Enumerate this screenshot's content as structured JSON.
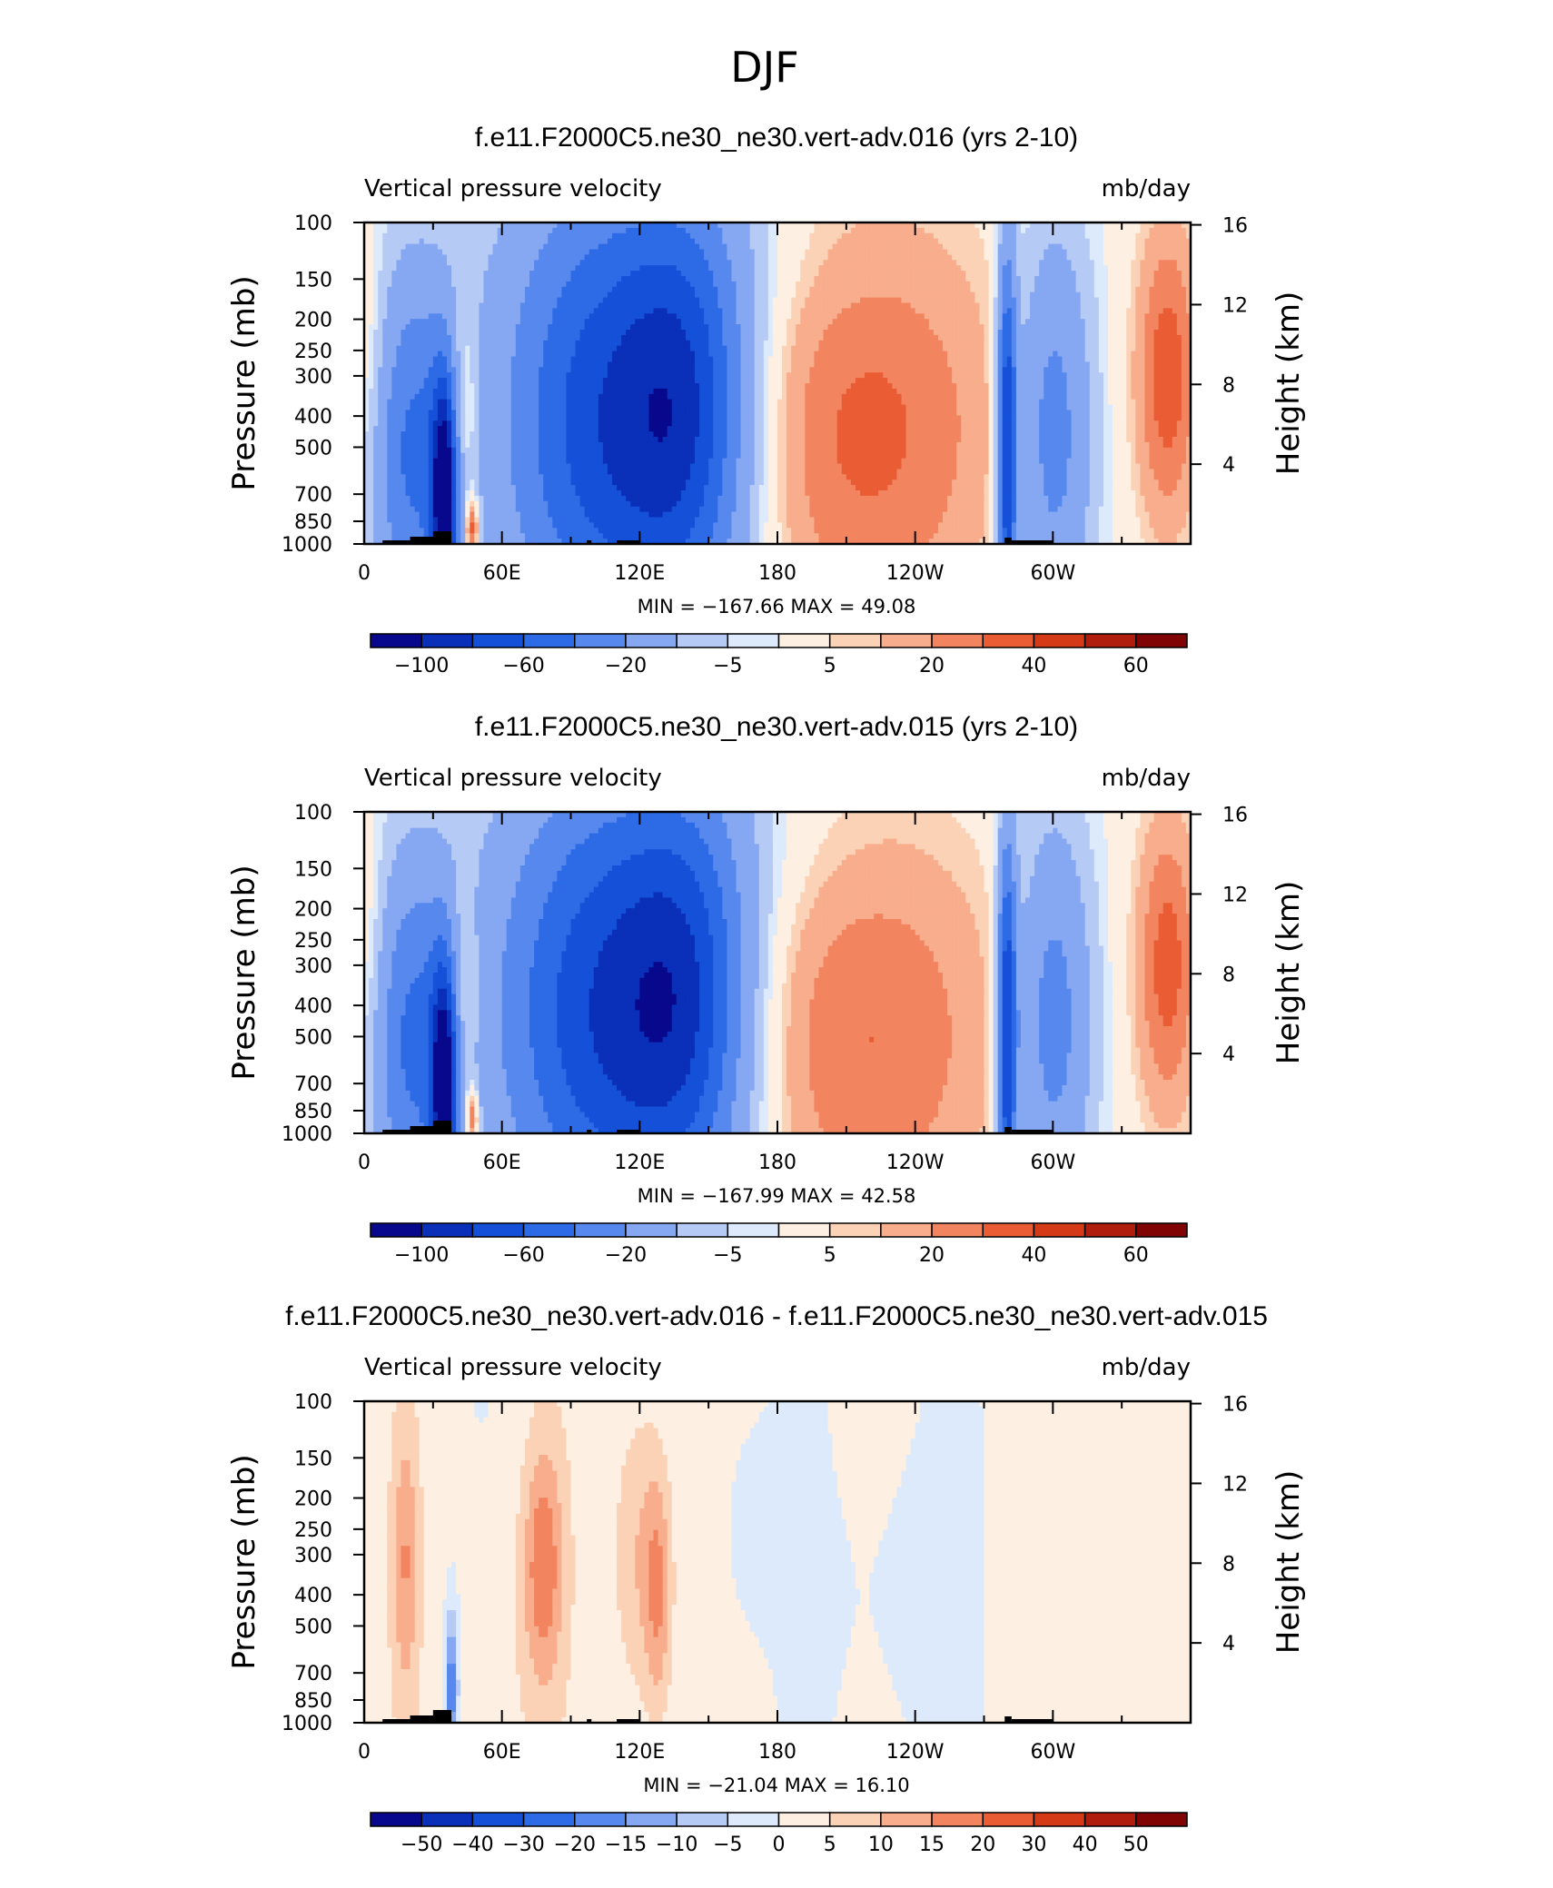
{
  "figure": {
    "title": "DJF"
  },
  "colors": {
    "diverging": [
      "#08088c",
      "#0a2fb8",
      "#1450d8",
      "#2d6ae6",
      "#5788ee",
      "#86a8f2",
      "#b6caf6",
      "#ddeafb",
      "#fdf0e3",
      "#fbd2b6",
      "#f8ad8c",
      "#f28560",
      "#ea5c34",
      "#d43a16",
      "#b11d0c",
      "#810404"
    ]
  },
  "chart_data": [
    {
      "type": "heatmap",
      "title": "f.e11.F2000C5.ne30_ne30.vert-adv.016 (yrs 2-10)",
      "left_subtitle": "Vertical pressure velocity",
      "right_subtitle": "mb/day",
      "ylabel": "Pressure (mb)",
      "y2label": "Height (km)",
      "y_ticks": [
        "100",
        "150",
        "200",
        "250",
        "300",
        "400",
        "500",
        "700",
        "850",
        "1000"
      ],
      "y_tick_values": [
        100,
        150,
        200,
        250,
        300,
        400,
        500,
        700,
        850,
        1000
      ],
      "y2_ticks": [
        "16",
        "12",
        "8",
        "4"
      ],
      "y2_tick_values": [
        16,
        12,
        8,
        4
      ],
      "x_ticks": [
        "0",
        "60E",
        "120E",
        "180",
        "120W",
        "60W"
      ],
      "x_tick_values": [
        0,
        60,
        120,
        180,
        240,
        300
      ],
      "xlim": [
        0,
        360
      ],
      "ylim": [
        1000,
        100
      ],
      "y_scale": "log",
      "stats": "MIN = −167.66   MAX =   49.08",
      "colorbar_labels": [
        "−100",
        "−60",
        "−20",
        "−5",
        "5",
        "20",
        "40",
        "60"
      ],
      "features": [
        {
          "lon": 22,
          "p": 520,
          "value": -60,
          "wlon": 14,
          "wp": 0.9
        },
        {
          "lon": 35,
          "p": 720,
          "value": -120,
          "wlon": 4,
          "wp": 0.6
        },
        {
          "lon": 43,
          "p": 420,
          "value": 30,
          "wlon": 5,
          "wp": 0.6
        },
        {
          "lon": 47,
          "p": 900,
          "value": 50,
          "wlon": 2,
          "wp": 0.15
        },
        {
          "lon": 2,
          "p": 300,
          "value": 15,
          "wlon": 6,
          "wp": 0.7
        },
        {
          "lon": 100,
          "p": 400,
          "value": -60,
          "wlon": 28,
          "wp": 1.1
        },
        {
          "lon": 140,
          "p": 380,
          "value": -70,
          "wlon": 20,
          "wp": 1.0
        },
        {
          "lon": 120,
          "p": 600,
          "value": -30,
          "wlon": 40,
          "wp": 1.3
        },
        {
          "lon": 215,
          "p": 420,
          "value": 38,
          "wlon": 45,
          "wp": 1.2
        },
        {
          "lon": 280,
          "p": 500,
          "value": -100,
          "wlon": 3,
          "wp": 1.0
        },
        {
          "lon": 300,
          "p": 450,
          "value": -50,
          "wlon": 12,
          "wp": 1.0
        },
        {
          "lon": 350,
          "p": 300,
          "value": 40,
          "wlon": 10,
          "wp": 0.8
        },
        {
          "lon": 150,
          "p": 130,
          "value": -10,
          "wlon": 60,
          "wp": 0.6
        }
      ]
    },
    {
      "type": "heatmap",
      "title": "f.e11.F2000C5.ne30_ne30.vert-adv.015 (yrs 2-10)",
      "left_subtitle": "Vertical pressure velocity",
      "right_subtitle": "mb/day",
      "ylabel": "Pressure (mb)",
      "y2label": "Height (km)",
      "y_ticks": [
        "100",
        "150",
        "200",
        "250",
        "300",
        "400",
        "500",
        "700",
        "850",
        "1000"
      ],
      "y_tick_values": [
        100,
        150,
        200,
        250,
        300,
        400,
        500,
        700,
        850,
        1000
      ],
      "y2_ticks": [
        "16",
        "12",
        "8",
        "4"
      ],
      "y2_tick_values": [
        16,
        12,
        8,
        4
      ],
      "x_ticks": [
        "0",
        "60E",
        "120E",
        "180",
        "120W",
        "60W"
      ],
      "x_tick_values": [
        0,
        60,
        120,
        180,
        240,
        300
      ],
      "xlim": [
        0,
        360
      ],
      "ylim": [
        1000,
        100
      ],
      "y_scale": "log",
      "stats": "MIN = −167.99   MAX =   42.58",
      "colorbar_labels": [
        "−100",
        "−60",
        "−20",
        "−5",
        "5",
        "20",
        "40",
        "60"
      ],
      "features": [
        {
          "lon": 22,
          "p": 520,
          "value": -60,
          "wlon": 14,
          "wp": 0.9
        },
        {
          "lon": 35,
          "p": 720,
          "value": -120,
          "wlon": 4,
          "wp": 0.6
        },
        {
          "lon": 43,
          "p": 420,
          "value": 30,
          "wlon": 5,
          "wp": 0.6
        },
        {
          "lon": 47,
          "p": 900,
          "value": 45,
          "wlon": 2,
          "wp": 0.15
        },
        {
          "lon": 2,
          "p": 300,
          "value": 15,
          "wlon": 6,
          "wp": 0.7
        },
        {
          "lon": 100,
          "p": 400,
          "value": -65,
          "wlon": 30,
          "wp": 1.1
        },
        {
          "lon": 140,
          "p": 380,
          "value": -65,
          "wlon": 20,
          "wp": 1.0
        },
        {
          "lon": 120,
          "p": 600,
          "value": -30,
          "wlon": 40,
          "wp": 1.3
        },
        {
          "lon": 215,
          "p": 480,
          "value": 35,
          "wlon": 45,
          "wp": 1.2
        },
        {
          "lon": 280,
          "p": 500,
          "value": -100,
          "wlon": 3,
          "wp": 1.0
        },
        {
          "lon": 300,
          "p": 450,
          "value": -50,
          "wlon": 12,
          "wp": 1.0
        },
        {
          "lon": 350,
          "p": 300,
          "value": 38,
          "wlon": 10,
          "wp": 0.8
        },
        {
          "lon": 150,
          "p": 130,
          "value": -10,
          "wlon": 60,
          "wp": 0.6
        }
      ]
    },
    {
      "type": "heatmap",
      "title": "f.e11.F2000C5.ne30_ne30.vert-adv.016 - f.e11.F2000C5.ne30_ne30.vert-adv.015",
      "left_subtitle": "Vertical pressure velocity",
      "right_subtitle": "mb/day",
      "ylabel": "Pressure (mb)",
      "y2label": "Height (km)",
      "y_ticks": [
        "100",
        "150",
        "200",
        "250",
        "300",
        "400",
        "500",
        "700",
        "850",
        "1000"
      ],
      "y_tick_values": [
        100,
        150,
        200,
        250,
        300,
        400,
        500,
        700,
        850,
        1000
      ],
      "y2_ticks": [
        "16",
        "12",
        "8",
        "4"
      ],
      "y2_tick_values": [
        16,
        12,
        8,
        4
      ],
      "x_ticks": [
        "0",
        "60E",
        "120E",
        "180",
        "120W",
        "60W"
      ],
      "x_tick_values": [
        0,
        60,
        120,
        180,
        240,
        300
      ],
      "xlim": [
        0,
        360
      ],
      "ylim": [
        1000,
        100
      ],
      "y_scale": "log",
      "stats": "MIN = −21.04   MAX =   16.10",
      "colorbar_labels": [
        "−50",
        "−40",
        "−30",
        "−20",
        "−15",
        "−10",
        "−5",
        "0",
        "5",
        "10",
        "15",
        "20",
        "30",
        "40",
        "50"
      ],
      "features": [
        {
          "lon": 18,
          "p": 320,
          "value": 12,
          "wlon": 4,
          "wp": 0.7
        },
        {
          "lon": 38,
          "p": 780,
          "value": -21,
          "wlon": 2,
          "wp": 0.4
        },
        {
          "lon": 78,
          "p": 320,
          "value": 16,
          "wlon": 6,
          "wp": 0.6
        },
        {
          "lon": 120,
          "p": 300,
          "value": 10,
          "wlon": 8,
          "wp": 0.8
        },
        {
          "lon": 128,
          "p": 400,
          "value": 12,
          "wlon": 4,
          "wp": 0.6
        },
        {
          "lon": 165,
          "p": 250,
          "value": -4,
          "wlon": 10,
          "wp": 0.7
        },
        {
          "lon": 232,
          "p": 400,
          "value": -4,
          "wlon": 20,
          "wp": 1.0
        },
        {
          "lon": 300,
          "p": 500,
          "value": -3,
          "wlon": 10,
          "wp": 0.8
        },
        {
          "lon": 325,
          "p": 300,
          "value": 4,
          "wlon": 20,
          "wp": 1.0
        },
        {
          "lon": 60,
          "p": 700,
          "value": 3,
          "wlon": 15,
          "wp": 1.0
        }
      ]
    }
  ]
}
